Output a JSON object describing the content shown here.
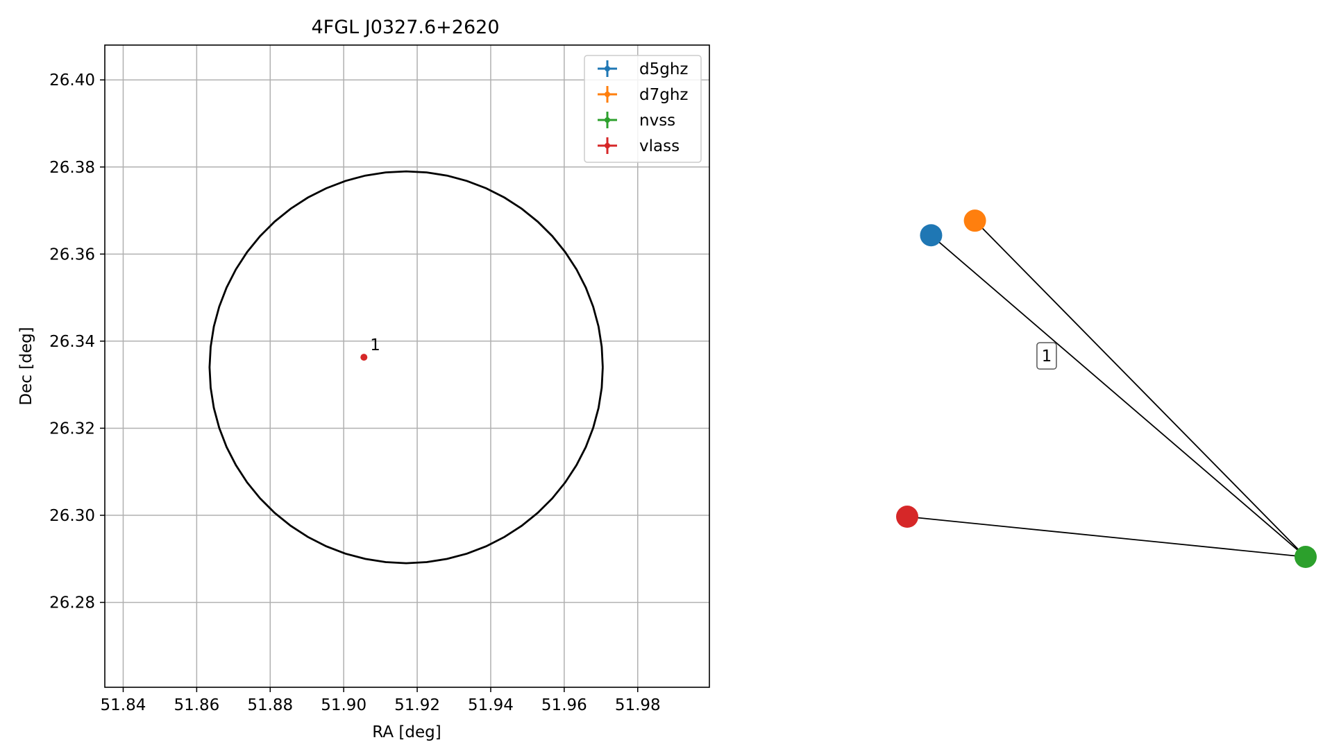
{
  "chart_data": [
    {
      "type": "scatter",
      "title": "4FGL J0327.6+2620",
      "xlabel": "RA [deg]",
      "ylabel": "Dec [deg]",
      "xlim": [
        51.835,
        51.9995
      ],
      "ylim": [
        26.2605,
        26.408
      ],
      "xticks": [
        51.84,
        51.86,
        51.88,
        51.9,
        51.92,
        51.94,
        51.96,
        51.98
      ],
      "xtick_labels": [
        "51.84",
        "51.86",
        "51.88",
        "51.90",
        "51.92",
        "51.94",
        "51.96",
        "51.98"
      ],
      "yticks": [
        26.28,
        26.3,
        26.32,
        26.34,
        26.36,
        26.38,
        26.4
      ],
      "ytick_labels": [
        "26.28",
        "26.30",
        "26.32",
        "26.34",
        "26.36",
        "26.38",
        "26.40"
      ],
      "grid": true,
      "legend_position": "upper right",
      "legend": [
        {
          "name": "d5ghz",
          "color": "#1f77b4"
        },
        {
          "name": "d7ghz",
          "color": "#ff7f0e"
        },
        {
          "name": "nvss",
          "color": "#2ca02c"
        },
        {
          "name": "vlass",
          "color": "#d62728"
        }
      ],
      "points": [
        {
          "x": 51.9055,
          "y": 26.3363,
          "series": "vlass",
          "label": "1",
          "color": "#d62728"
        }
      ],
      "ellipse": {
        "center_x": 51.917,
        "center_y": 26.334,
        "radius_x": 0.0535,
        "radius_y": 0.045,
        "color": "#000000"
      }
    },
    {
      "type": "network",
      "nodes": [
        {
          "id": "d5ghz",
          "color": "#1f77b4",
          "x": 0.06,
          "y": 0.88
        },
        {
          "id": "d7ghz",
          "color": "#ff7f0e",
          "x": 0.17,
          "y": 0.92
        },
        {
          "id": "nvss",
          "color": "#2ca02c",
          "x": 1.0,
          "y": 0.0
        },
        {
          "id": "vlass",
          "color": "#d62728",
          "x": 0.0,
          "y": 0.11
        }
      ],
      "edges": [
        {
          "source": "d5ghz",
          "target": "nvss"
        },
        {
          "source": "d7ghz",
          "target": "nvss"
        },
        {
          "source": "vlass",
          "target": "nvss"
        }
      ],
      "cluster_label": {
        "text": "1",
        "x": 0.35,
        "y": 0.55
      }
    }
  ]
}
